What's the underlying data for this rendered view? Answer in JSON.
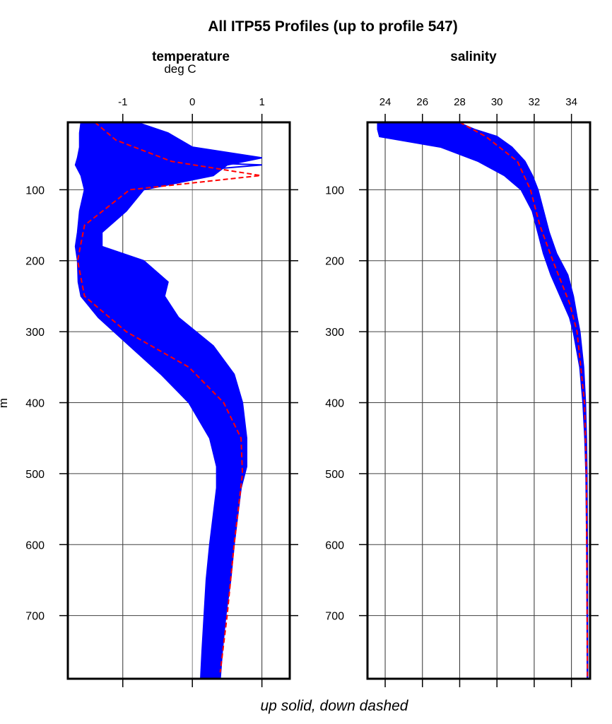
{
  "chart_data": [
    {
      "type": "line",
      "panel": "left",
      "title": "temperature",
      "xlabel": "deg C",
      "ylabel": "m",
      "xlim": [
        -1.79,
        1.4
      ],
      "ylim": [
        789,
        5
      ],
      "x_ticks": [
        -1,
        0,
        1
      ],
      "y_ticks": [
        100,
        200,
        300,
        400,
        500,
        600,
        700
      ],
      "grid": true,
      "series": [
        {
          "name": "up (solid)",
          "style": "solid",
          "color": "#0000ff",
          "envelope": {
            "depth": [
              5,
              20,
              40,
              55,
              65,
              80,
              100,
              130,
              160,
              180,
              200,
              230,
              250,
              280,
              320,
              360,
              400,
              450,
              490,
              520,
              560,
              600,
              650,
              700,
              750,
              789
            ],
            "min": [
              -1.6,
              -1.62,
              -1.62,
              -1.65,
              -1.68,
              -1.6,
              -1.55,
              -1.62,
              -1.65,
              -1.68,
              -1.65,
              -1.64,
              -1.6,
              -1.35,
              -0.9,
              -0.45,
              -0.05,
              0.25,
              0.35,
              0.35,
              0.3,
              0.25,
              0.2,
              0.17,
              0.14,
              0.12
            ],
            "max": [
              -0.8,
              -0.35,
              0.0,
              1.0,
              0.5,
              0.3,
              -0.7,
              -0.95,
              -1.3,
              -1.3,
              -0.7,
              -0.35,
              -0.4,
              -0.2,
              0.3,
              0.6,
              0.72,
              0.78,
              0.78,
              0.7,
              0.65,
              0.6,
              0.55,
              0.48,
              0.43,
              0.4
            ]
          },
          "representative": {
            "depth": [
              5,
              30,
              60,
              65,
              80,
              100,
              150,
              200,
              250,
              300,
              350,
              400,
              450,
              500,
              600,
              700,
              789
            ],
            "temp": [
              -1.45,
              -1.2,
              -0.4,
              1.0,
              -0.8,
              -1.2,
              -1.5,
              -1.6,
              -1.45,
              -0.75,
              0.1,
              0.6,
              0.72,
              0.7,
              0.58,
              0.47,
              0.38
            ]
          }
        },
        {
          "name": "down (dashed)",
          "style": "dashed",
          "color": "#ff0000",
          "representative": {
            "depth": [
              5,
              30,
              60,
              80,
              100,
              150,
              200,
              250,
              300,
              350,
              400,
              450,
              500,
              600,
              700,
              780
            ],
            "temp": [
              -1.4,
              -1.1,
              -0.3,
              0.98,
              -0.9,
              -1.55,
              -1.65,
              -1.55,
              -0.95,
              -0.05,
              0.45,
              0.7,
              0.72,
              0.6,
              0.5,
              0.4
            ]
          }
        }
      ]
    },
    {
      "type": "line",
      "panel": "right",
      "title": "salinity",
      "xlabel": "",
      "ylabel": "",
      "xlim": [
        23.05,
        35.0
      ],
      "ylim": [
        789,
        5
      ],
      "x_ticks": [
        24,
        26,
        28,
        30,
        32,
        34
      ],
      "y_ticks": [
        100,
        200,
        300,
        400,
        500,
        600,
        700
      ],
      "grid": true,
      "series": [
        {
          "name": "up (solid)",
          "style": "solid",
          "color": "#0000ff",
          "envelope": {
            "depth": [
              5,
              15,
              25,
              40,
              60,
              80,
              100,
              130,
              160,
              190,
              220,
              250,
              280,
              300,
              350,
              400,
              450,
              500,
              600,
              700,
              789
            ],
            "min": [
              23.6,
              23.6,
              23.7,
              27.0,
              29.0,
              30.4,
              31.3,
              31.9,
              32.2,
              32.5,
              32.9,
              33.4,
              33.9,
              34.1,
              34.45,
              34.62,
              34.72,
              34.78,
              34.82,
              34.84,
              34.85
            ],
            "max": [
              27.9,
              28.8,
              30.0,
              30.8,
              31.5,
              31.9,
              32.2,
              32.5,
              32.8,
              33.2,
              33.8,
              34.1,
              34.3,
              34.45,
              34.65,
              34.75,
              34.8,
              34.83,
              34.85,
              34.86,
              34.87
            ]
          }
        },
        {
          "name": "down (dashed)",
          "style": "dashed",
          "color": "#ff0000",
          "representative": {
            "depth": [
              5,
              25,
              60,
              100,
              150,
              200,
              260,
              300,
              400,
              500,
              789
            ],
            "salt": [
              28.0,
              29.4,
              31.1,
              31.8,
              32.3,
              33.0,
              33.9,
              34.3,
              34.7,
              34.8,
              34.86
            ]
          }
        }
      ]
    }
  ],
  "figure": {
    "title": "All ITP55 Profiles (up to profile 547)",
    "left_title": "temperature",
    "left_unit": "deg C",
    "right_title": "salinity",
    "y_axis_label": "m",
    "caption": "up solid, down dashed"
  },
  "colors": {
    "up": "#0000ff",
    "down": "#ff0000",
    "grid": "#808080",
    "frame": "#000000"
  }
}
